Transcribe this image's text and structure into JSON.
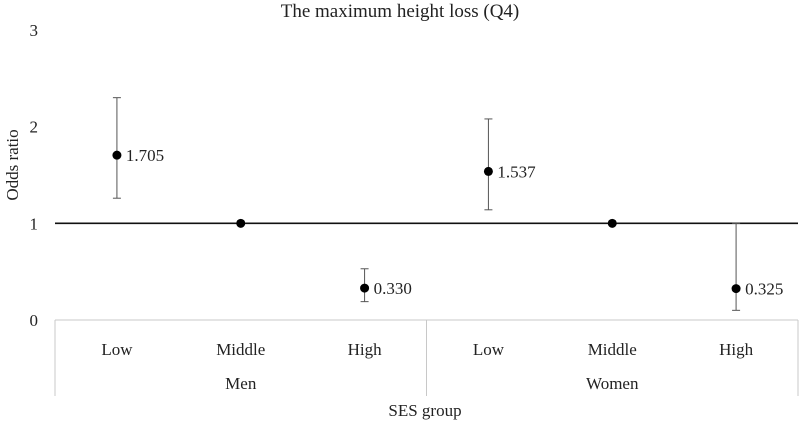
{
  "chart_data": {
    "type": "scatter",
    "title": "The maximum height loss (Q4)",
    "ylabel": "Odds ratio",
    "xlabel": "SES group",
    "ylim": [
      0,
      3
    ],
    "yticks": [
      0,
      1,
      2,
      3
    ],
    "reference_line": 1,
    "grid": false,
    "groups": [
      {
        "name": "Men",
        "categories": [
          "Low",
          "Middle",
          "High"
        ]
      },
      {
        "name": "Women",
        "categories": [
          "Low",
          "Middle",
          "High"
        ]
      }
    ],
    "points": [
      {
        "group": "Men",
        "category": "Low",
        "value": 1.705,
        "lower": 1.26,
        "upper": 2.3,
        "label": "1.705"
      },
      {
        "group": "Men",
        "category": "Middle",
        "value": 1.0,
        "lower": null,
        "upper": null,
        "label": ""
      },
      {
        "group": "Men",
        "category": "High",
        "value": 0.33,
        "lower": 0.19,
        "upper": 0.53,
        "label": "0.330"
      },
      {
        "group": "Women",
        "category": "Low",
        "value": 1.537,
        "lower": 1.14,
        "upper": 2.08,
        "label": "1.537"
      },
      {
        "group": "Women",
        "category": "Middle",
        "value": 1.0,
        "lower": null,
        "upper": null,
        "label": ""
      },
      {
        "group": "Women",
        "category": "High",
        "value": 0.325,
        "lower": 0.1,
        "upper": 1.0,
        "label": "0.325"
      }
    ]
  }
}
